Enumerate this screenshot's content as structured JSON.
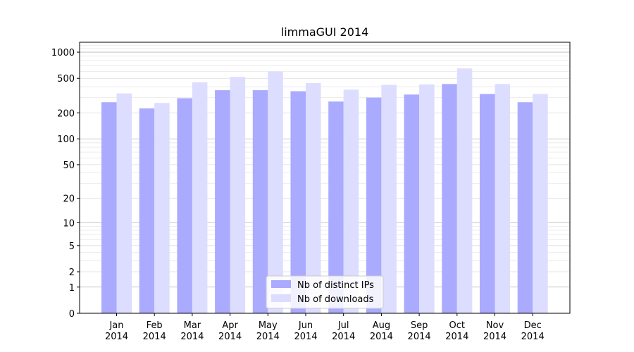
{
  "chart_data": {
    "type": "bar",
    "title": "limmaGUI 2014",
    "xlabel": "",
    "ylabel": "",
    "y_scale": "log1p",
    "ylim": [
      0,
      1300
    ],
    "y_ticks": [
      0,
      1,
      2,
      5,
      10,
      20,
      50,
      100,
      200,
      500,
      1000
    ],
    "categories": [
      [
        "Jan",
        "2014"
      ],
      [
        "Feb",
        "2014"
      ],
      [
        "Mar",
        "2014"
      ],
      [
        "Apr",
        "2014"
      ],
      [
        "May",
        "2014"
      ],
      [
        "Jun",
        "2014"
      ],
      [
        "Jul",
        "2014"
      ],
      [
        "Aug",
        "2014"
      ],
      [
        "Sep",
        "2014"
      ],
      [
        "Oct",
        "2014"
      ],
      [
        "Nov",
        "2014"
      ],
      [
        "Dec",
        "2014"
      ]
    ],
    "series": [
      {
        "name": "Nb of distinct IPs",
        "color": "#aaaaff",
        "values": [
          265,
          225,
          295,
          365,
          365,
          355,
          270,
          300,
          325,
          430,
          330,
          265
        ]
      },
      {
        "name": "Nb of downloads",
        "color": "#ddddff",
        "values": [
          335,
          260,
          450,
          520,
          600,
          440,
          370,
          420,
          425,
          650,
          430,
          330
        ]
      }
    ],
    "grid": true,
    "legend_position": "bottom-center"
  }
}
